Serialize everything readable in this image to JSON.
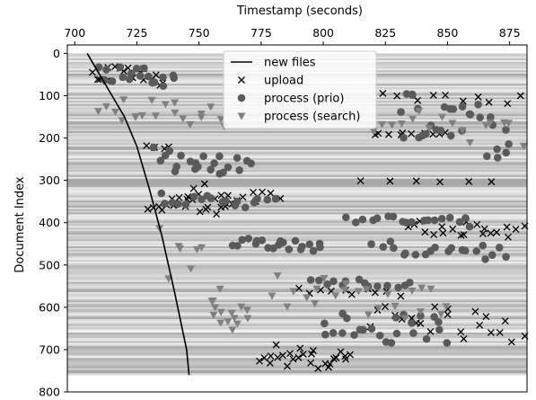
{
  "chart_data": {
    "type": "scatter",
    "title": "",
    "xlabel": "Timestamp (seconds)",
    "ylabel": "Document Index",
    "xlim": [
      697,
      882
    ],
    "ylim": [
      800,
      -20
    ],
    "x_axis_position": "top",
    "y_inverted": true,
    "grid": false,
    "background": "horizontal grayscale bands (per-document shading), documents 0-760",
    "x_ticks": [
      "700",
      "725",
      "750",
      "775",
      "800",
      "825",
      "850",
      "875"
    ],
    "y_ticks": [
      "0",
      "100",
      "200",
      "300",
      "400",
      "500",
      "600",
      "700",
      "800"
    ],
    "legend": {
      "placement": "top-center",
      "entries": [
        {
          "label": "new files",
          "marker": "line",
          "color": "#000000"
        },
        {
          "label": "upload",
          "marker": "x",
          "color": "#000000"
        },
        {
          "label": "process (prio)",
          "marker": "circle",
          "color": "#5a5a5a"
        },
        {
          "label": "process (search)",
          "marker": "triangle-down",
          "color": "#808080"
        }
      ]
    },
    "series": [
      {
        "name": "new files",
        "kind": "line",
        "points": [
          [
            705,
            0
          ],
          [
            710,
            50
          ],
          [
            715,
            100
          ],
          [
            720,
            150
          ],
          [
            725,
            220
          ],
          [
            730,
            320
          ],
          [
            735,
            430
          ],
          [
            740,
            560
          ],
          [
            745,
            700
          ],
          [
            746,
            760
          ]
        ]
      },
      {
        "name": "upload",
        "kind": "scatter",
        "marker": "x",
        "clusters": [
          {
            "x": [
              707,
              735
            ],
            "y": [
              20,
              80
            ],
            "n": 18
          },
          {
            "x": [
              728,
              738
            ],
            "y": [
              210,
              230
            ],
            "n": 5
          },
          {
            "x": [
              730,
              765
            ],
            "y": [
              330,
              385
            ],
            "n": 20
          },
          {
            "x": [
              745,
              782
            ],
            "y": [
              300,
              360
            ],
            "n": 14
          },
          {
            "x": [
              775,
              812
            ],
            "y": [
              680,
              755
            ],
            "n": 26
          },
          {
            "x": [
              790,
              830
            ],
            "y": [
              550,
              575
            ],
            "n": 10
          },
          {
            "x": [
              815,
              868
            ],
            "y": [
              300,
              305
            ],
            "n": 6
          },
          {
            "x": [
              820,
              850
            ],
            "y": [
              180,
              200
            ],
            "n": 10
          },
          {
            "x": [
              825,
              880
            ],
            "y": [
              90,
              120
            ],
            "n": 10
          },
          {
            "x": [
              835,
              880
            ],
            "y": [
              390,
              440
            ],
            "n": 20
          },
          {
            "x": [
              820,
              880
            ],
            "y": [
              580,
              690
            ],
            "n": 22
          }
        ]
      },
      {
        "name": "process (prio)",
        "kind": "scatter",
        "marker": "circle",
        "clusters": [
          {
            "x": [
              710,
              740
            ],
            "y": [
              25,
              80
            ],
            "n": 18
          },
          {
            "x": [
              733,
              770
            ],
            "y": [
              220,
              300
            ],
            "n": 22
          },
          {
            "x": [
              735,
              780
            ],
            "y": [
              330,
              370
            ],
            "n": 18
          },
          {
            "x": [
              765,
              800
            ],
            "y": [
              435,
              470
            ],
            "n": 20
          },
          {
            "x": [
              795,
              835
            ],
            "y": [
              530,
              560
            ],
            "n": 14
          },
          {
            "x": [
              810,
              860
            ],
            "y": [
              380,
              410
            ],
            "n": 18
          },
          {
            "x": [
              820,
              875
            ],
            "y": [
              440,
              490
            ],
            "n": 20
          },
          {
            "x": [
              800,
              850
            ],
            "y": [
              590,
              700
            ],
            "n": 24
          },
          {
            "x": [
              830,
              876
            ],
            "y": [
              80,
              260
            ],
            "n": 30
          }
        ]
      },
      {
        "name": "process (search)",
        "kind": "scatter",
        "marker": "triangle-down",
        "clusters": [
          {
            "x": [
              710,
              760
            ],
            "y": [
              100,
              180
            ],
            "n": 20
          },
          {
            "x": [
              755,
              770
            ],
            "y": [
              560,
              690
            ],
            "n": 12
          },
          {
            "x": [
              735,
              760
            ],
            "y": [
              400,
              640
            ],
            "n": 10
          },
          {
            "x": [
              780,
              850
            ],
            "y": [
              520,
              640
            ],
            "n": 24
          },
          {
            "x": [
              820,
              880
            ],
            "y": [
              120,
              230
            ],
            "n": 16
          }
        ]
      }
    ]
  }
}
